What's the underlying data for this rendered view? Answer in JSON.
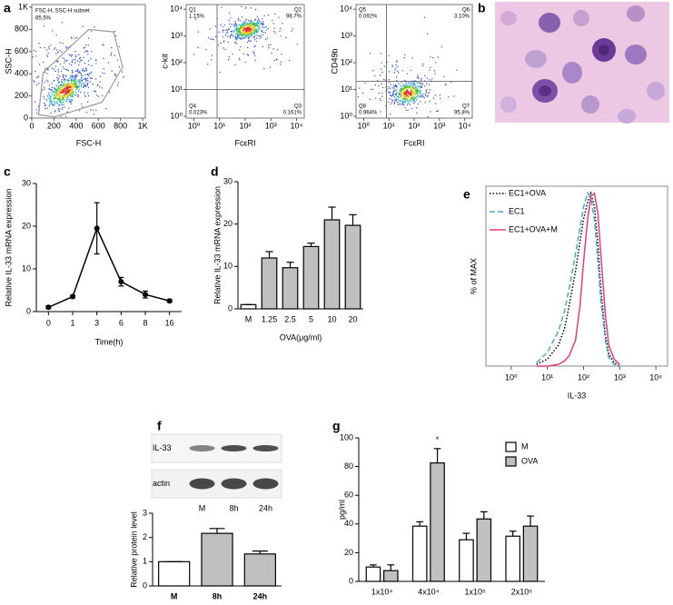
{
  "chart_data": [
    {
      "type": "flow",
      "panel": "a",
      "xlabel": "FSC-H",
      "ylabel": "SSC-H",
      "gate_label": "FSC-H, SSC-H subset",
      "gate_pct": "85.5%",
      "xlim": [
        0,
        1024
      ],
      "ylim": [
        0,
        1024
      ],
      "xticks": [
        0,
        200,
        400,
        600,
        800,
        {
          "value": 1000,
          "label": "1K"
        }
      ],
      "yticks": [
        0,
        200,
        400,
        600,
        800,
        {
          "value": 1000,
          "label": "1K"
        }
      ]
    },
    {
      "type": "flow",
      "xlabel": "FcεRI",
      "ylabel": "c-kit",
      "xlog": true,
      "ylog": true,
      "xlim": [
        0.5,
        20000
      ],
      "ylim": [
        0.85,
        15000
      ],
      "xticks": [
        {
          "value": 1,
          "label": "10⁰"
        },
        {
          "value": 10,
          "label": "10¹"
        },
        {
          "value": 100,
          "label": "10²"
        },
        {
          "value": 1000,
          "label": "10³"
        },
        {
          "value": 10000,
          "label": "10⁴"
        }
      ],
      "yticks": [
        {
          "value": 1,
          "label": "10⁰"
        },
        {
          "value": 10,
          "label": "10¹"
        },
        {
          "value": 100,
          "label": "10²"
        },
        {
          "value": 1000,
          "label": "10³"
        },
        {
          "value": 10000,
          "label": "10⁴"
        }
      ],
      "xgate": 8,
      "ygate": 10,
      "quadrants": [
        {
          "name": "Q1",
          "pct": "1.15%",
          "corner": "top-left"
        },
        {
          "name": "Q2",
          "pct": "98.7%",
          "corner": "top-right"
        },
        {
          "name": "Q3",
          "pct": "0.161%",
          "corner": "bottom-right"
        },
        {
          "name": "Q4",
          "pct": "0.023%",
          "corner": "bottom-left"
        }
      ]
    },
    {
      "type": "flow",
      "xlabel": "FcεRI",
      "ylabel": "CD49b",
      "xlog": true,
      "ylog": true,
      "xlim": [
        0.5,
        20000
      ],
      "ylim": [
        0.85,
        15000
      ],
      "xticks": [
        {
          "value": 1,
          "label": "10⁰"
        },
        {
          "value": 10,
          "label": "10¹"
        },
        {
          "value": 100,
          "label": "10²"
        },
        {
          "value": 1000,
          "label": "10³"
        },
        {
          "value": 10000,
          "label": "10⁴"
        }
      ],
      "yticks": [
        {
          "value": 1,
          "label": "10⁰"
        },
        {
          "value": 10,
          "label": "10¹"
        },
        {
          "value": 100,
          "label": "10²"
        },
        {
          "value": 1000,
          "label": "10³"
        },
        {
          "value": 10000,
          "label": "10⁴"
        }
      ],
      "xgate": 8,
      "ygate": 20,
      "quadrants": [
        {
          "name": "Q5",
          "pct": "0.092%",
          "corner": "top-left"
        },
        {
          "name": "Q6",
          "pct": "3.10%",
          "corner": "top-right"
        },
        {
          "name": "Q7",
          "pct": "95.8%",
          "corner": "bottom-right"
        },
        {
          "name": "Q8",
          "pct": "0.964%",
          "corner": "bottom-left"
        }
      ]
    },
    {
      "type": "image",
      "panel": "b"
    },
    {
      "type": "line",
      "panel": "c",
      "xlabel": "Time(h)",
      "ylabel": "Relative IL-33 mRNA expression",
      "color": "#000000",
      "categories": [
        "0",
        "1",
        "3",
        "6",
        "8",
        "16"
      ],
      "values": [
        1,
        3.5,
        19.5,
        7,
        4,
        2.5
      ],
      "errors": [
        0.3,
        0.3,
        6,
        1,
        0.8,
        0.3
      ],
      "ylim": [
        0,
        30
      ],
      "yticks": [
        0,
        10,
        20,
        30
      ]
    },
    {
      "type": "bar",
      "panel": "d",
      "xlabel": "OVA(μg/ml)",
      "ylabel": "Relative IL-33 mRNA expression",
      "categories": [
        "M",
        "1.25",
        "2.5",
        "5",
        "10",
        "20"
      ],
      "values": [
        1,
        12,
        9.7,
        14.7,
        21,
        19.7
      ],
      "errors": [
        0,
        1.5,
        1.3,
        0.8,
        3,
        2.5
      ],
      "colors": [
        "#ffffff",
        "#c0c0c0",
        "#c0c0c0",
        "#c0c0c0",
        "#c0c0c0",
        "#c0c0c0"
      ],
      "ylim": [
        0,
        30
      ],
      "yticks": [
        0,
        10,
        20,
        30
      ]
    },
    {
      "type": "density",
      "panel": "e",
      "xlabel": "IL-33",
      "ylabel": "% of MAX",
      "xlog": true,
      "xlim": [
        0.2,
        21000
      ],
      "ylim": [
        0,
        104
      ],
      "xticks": [
        {
          "value": 1,
          "label": "10⁰"
        },
        {
          "value": 10,
          "label": "10¹"
        },
        {
          "value": 100,
          "label": "10²"
        },
        {
          "value": 1000,
          "label": "10³"
        },
        {
          "value": 10000,
          "label": "10⁴"
        }
      ],
      "x": [
        5,
        10,
        20,
        30,
        40,
        60,
        80,
        100,
        130,
        160,
        200,
        250,
        300,
        400,
        500,
        700,
        1000
      ],
      "series": [
        {
          "name": "EC1+OVA",
          "color": "#000000",
          "dash": "dotted",
          "values": [
            1,
            4,
            12,
            22,
            35,
            55,
            72,
            85,
            95,
            100,
            92,
            70,
            45,
            18,
            7,
            2,
            0
          ]
        },
        {
          "name": "EC1",
          "color": "#4aa8c8",
          "dash": "dashed",
          "values": [
            2,
            8,
            20,
            32,
            45,
            65,
            80,
            92,
            100,
            97,
            85,
            60,
            38,
            15,
            5,
            1,
            0
          ]
        },
        {
          "name": "EC1+OVA+M",
          "color": "#e0407a",
          "dash": "solid",
          "values": [
            0,
            0,
            1,
            3,
            6,
            15,
            35,
            60,
            85,
            98,
            100,
            88,
            65,
            30,
            12,
            4,
            1
          ]
        }
      ]
    },
    {
      "type": "blot",
      "panel": "f",
      "rows": [
        "IL-33",
        "actin"
      ],
      "lanes": [
        "M",
        "8h",
        "24h"
      ]
    },
    {
      "type": "bar",
      "ylabel": "Relative protein level",
      "categories": [
        "M",
        "8h",
        "24h"
      ],
      "values": [
        1,
        2.17,
        1.32
      ],
      "errors": [
        0,
        0.2,
        0.12
      ],
      "colors": [
        "#ffffff",
        "#c0c0c0",
        "#c0c0c0"
      ],
      "ylim": [
        0,
        3
      ],
      "yticks": [
        0,
        1,
        2,
        3
      ]
    },
    {
      "type": "grouped_bar",
      "panel": "g",
      "ylabel": "pg/ml",
      "legend": "top-right",
      "annotation": "*",
      "categories": [
        "1x10⁴",
        "4x10⁴",
        "1x10⁵",
        "2x10⁵"
      ],
      "series": [
        {
          "name": "M",
          "color": "#ffffff",
          "values": [
            10,
            38.5,
            29,
            31.5
          ],
          "errors": [
            1.5,
            3,
            4.5,
            3.5
          ]
        },
        {
          "name": "OVA",
          "color": "#c0c0c0",
          "values": [
            7.5,
            82.5,
            43.5,
            38.5
          ],
          "errors": [
            4,
            10,
            5,
            7
          ]
        }
      ],
      "ylim": [
        0,
        100
      ],
      "yticks": [
        0,
        20,
        40,
        60,
        80,
        100
      ]
    }
  ]
}
